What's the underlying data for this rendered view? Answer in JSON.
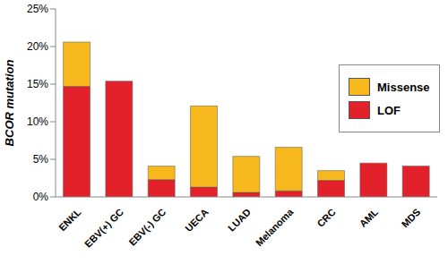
{
  "chart_data": {
    "type": "bar",
    "stacked": true,
    "legend": "right",
    "y_label": "BCOR mutation",
    "categories": [
      "ENKL",
      "EBV(+) GC",
      "EBV(-) GC",
      "UECA",
      "LUAD",
      "Melanoma",
      "CRC",
      "AML",
      "MDS"
    ],
    "series": [
      {
        "name": "LOF",
        "color": "#e3212b",
        "values": [
          14.7,
          15.4,
          2.3,
          1.3,
          0.6,
          0.8,
          2.2,
          4.5,
          4.1
        ]
      },
      {
        "name": "Missense",
        "color": "#f7b81e",
        "values": [
          5.9,
          0,
          1.8,
          10.8,
          4.8,
          5.8,
          1.3,
          0,
          0
        ]
      }
    ],
    "ylim": [
      0,
      25
    ],
    "yticks": [
      {
        "value": 0,
        "label": "0%"
      },
      {
        "value": 5,
        "label": "5%"
      },
      {
        "value": 10,
        "label": "10%"
      },
      {
        "value": 15,
        "label": "15%"
      },
      {
        "value": 20,
        "label": "20%"
      },
      {
        "value": 25,
        "label": "25%"
      }
    ]
  }
}
